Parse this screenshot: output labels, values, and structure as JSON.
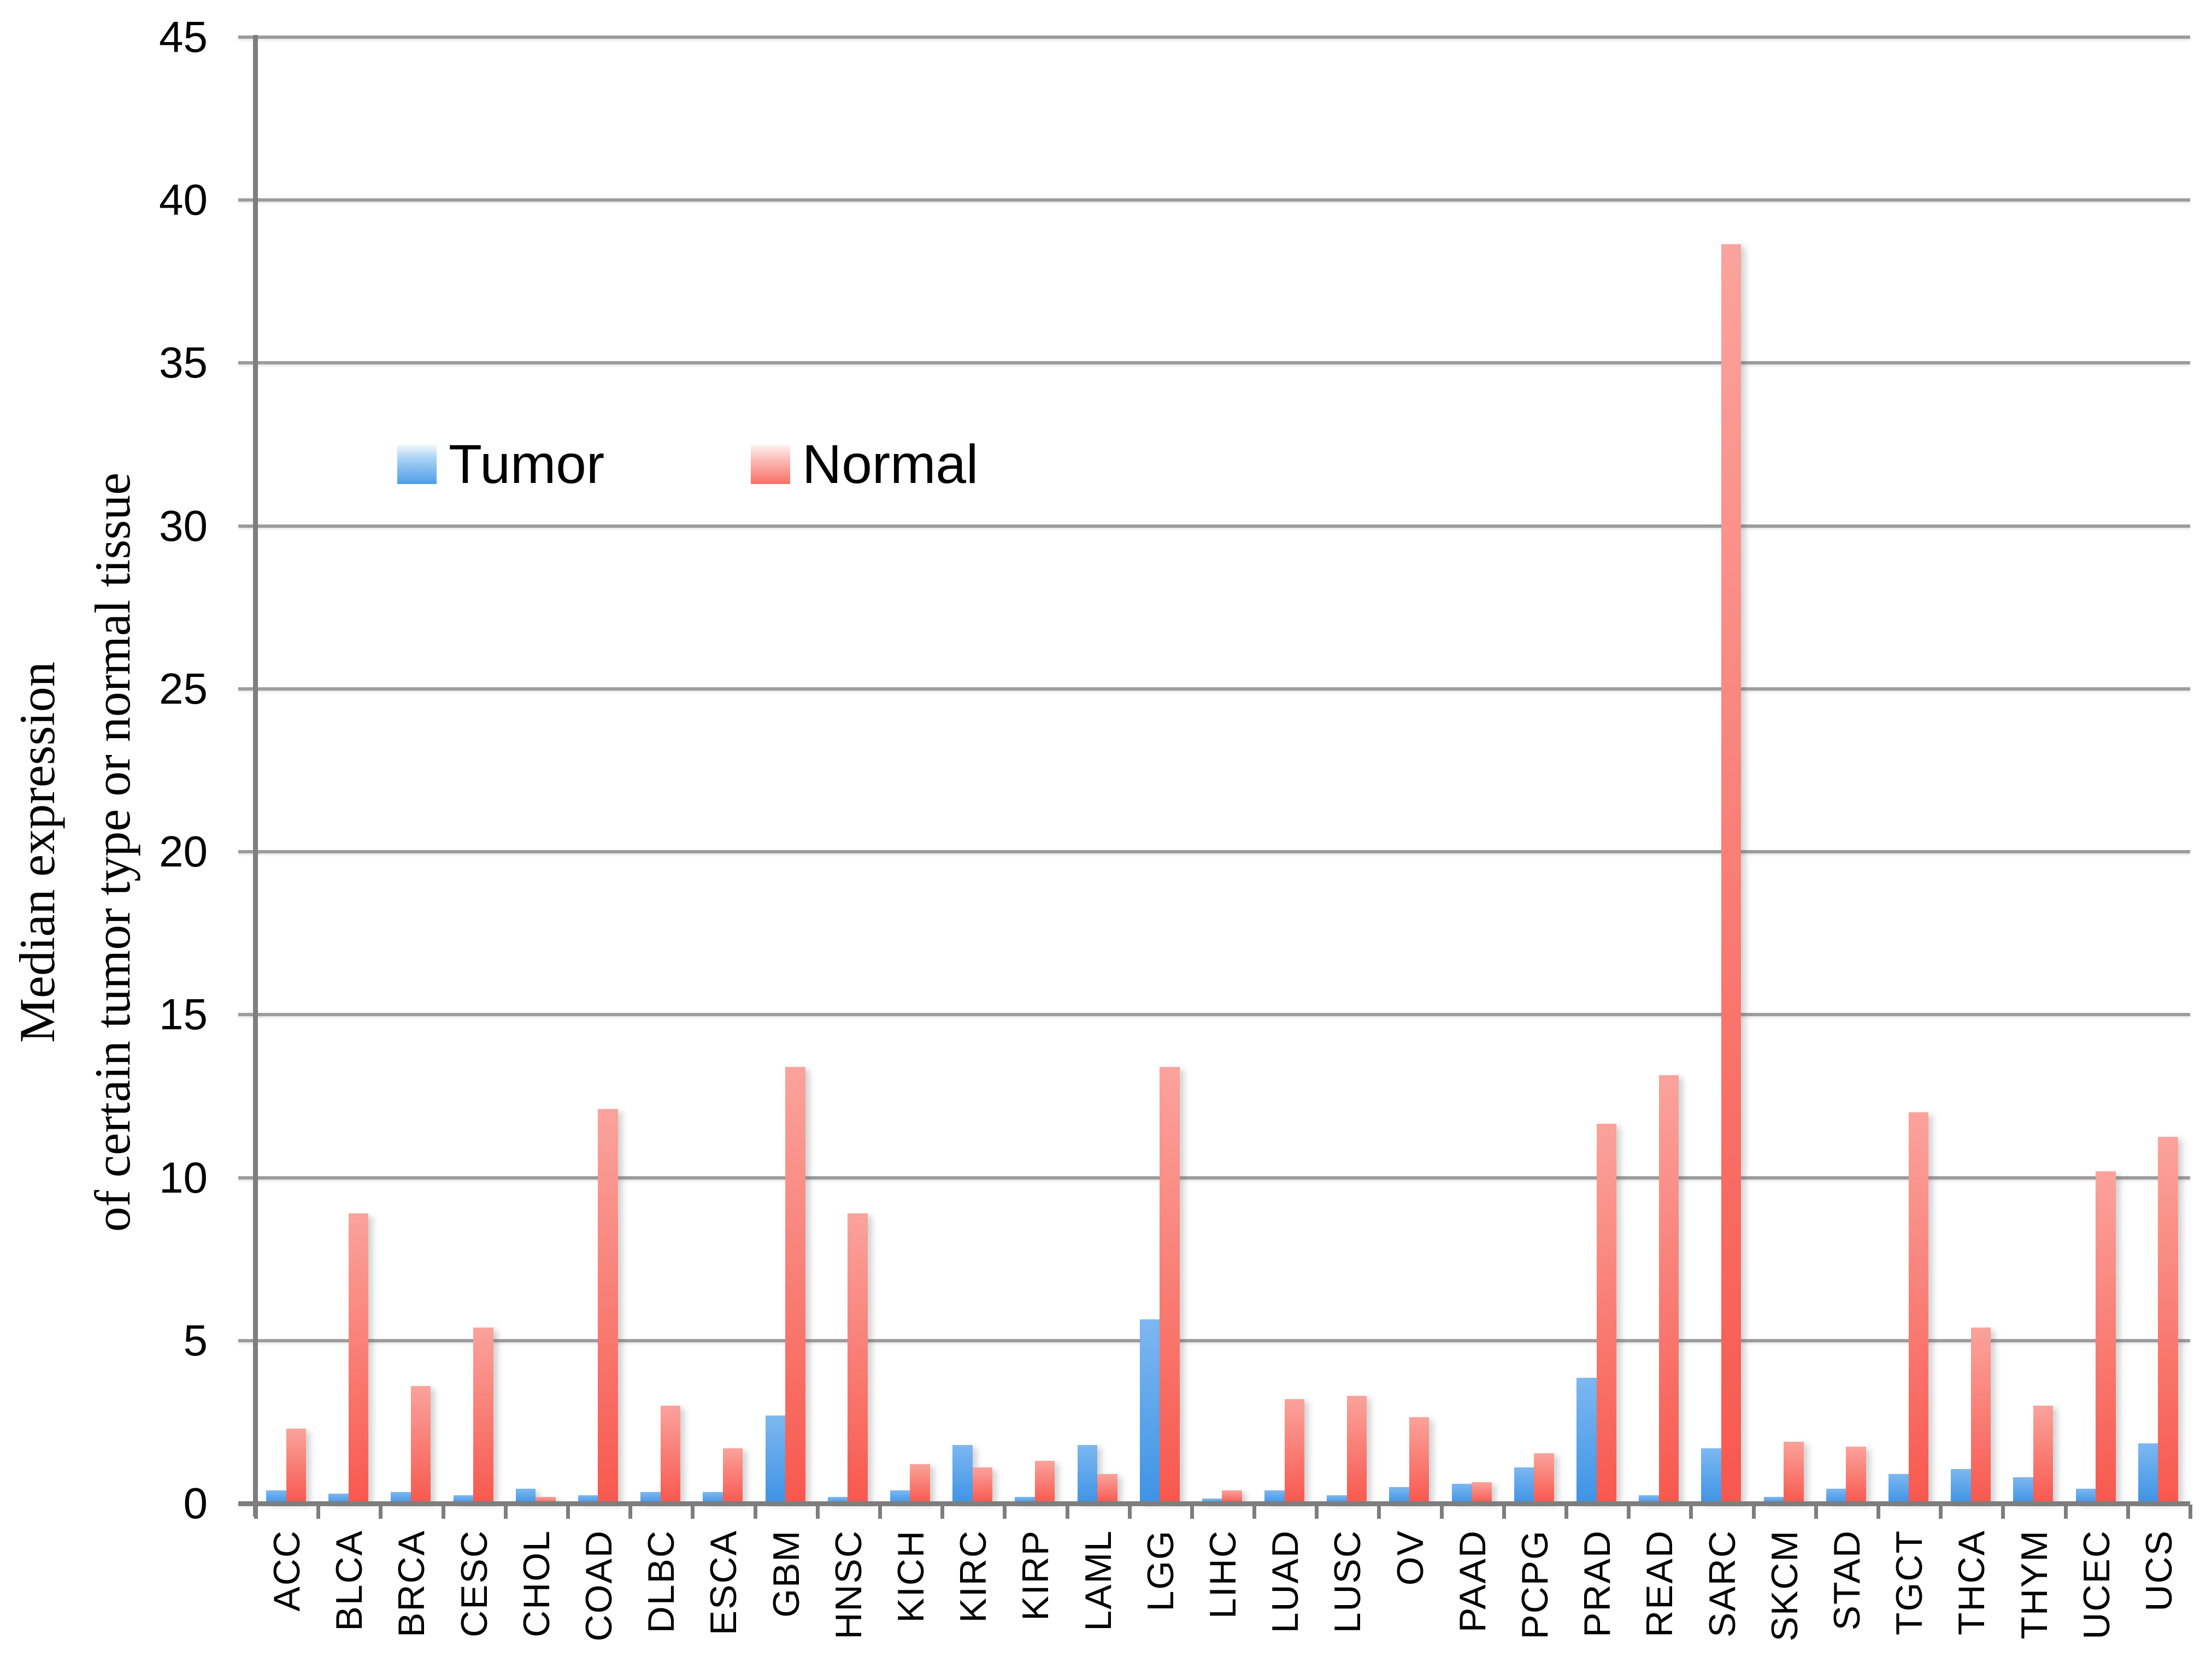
{
  "chart_data": {
    "type": "bar",
    "title": "",
    "ylabel_lines": [
      "Median expression",
      "of certain tumor type or normal tissue"
    ],
    "xlabel": "",
    "categories": [
      "ACC",
      "BLCA",
      "BRCA",
      "CESC",
      "CHOL",
      "COAD",
      "DLBC",
      "ESCA",
      "GBM",
      "HNSC",
      "KICH",
      "KIRC",
      "KIRP",
      "LAML",
      "LGG",
      "LIHC",
      "LUAD",
      "LUSC",
      "OV",
      "PAAD",
      "PCPG",
      "PRAD",
      "READ",
      "SARC",
      "SKCM",
      "STAD",
      "TGCT",
      "THCA",
      "THYM",
      "UCEC",
      "UCS"
    ],
    "series": [
      {
        "name": "Tumor",
        "color_top": "#7db8f1",
        "color_bottom": "#3e93e5",
        "values": [
          0.4,
          0.3,
          0.35,
          0.25,
          0.45,
          0.25,
          0.35,
          0.35,
          2.7,
          0.2,
          0.4,
          1.8,
          0.2,
          1.8,
          5.65,
          0.15,
          0.4,
          0.25,
          0.5,
          0.6,
          1.1,
          3.85,
          0.25,
          1.7,
          0.2,
          0.45,
          0.9,
          1.05,
          0.8,
          0.45,
          1.85
        ]
      },
      {
        "name": "Normal",
        "color_top": "#faa39c",
        "color_bottom": "#f8584e",
        "values": [
          2.3,
          8.9,
          3.6,
          5.4,
          0.2,
          12.1,
          3.0,
          1.7,
          13.4,
          8.9,
          1.2,
          1.1,
          1.3,
          0.9,
          13.4,
          0.4,
          3.2,
          3.3,
          2.65,
          0.65,
          1.55,
          11.65,
          13.15,
          38.65,
          1.9,
          1.75,
          12.0,
          5.4,
          3.0,
          10.2,
          11.25
        ]
      }
    ],
    "ylim": [
      0,
      45
    ],
    "ytick_step": 5,
    "yticks": [
      0,
      5,
      10,
      15,
      20,
      25,
      30,
      35,
      40,
      45
    ],
    "grid": true,
    "legend_position": "inside-top-left"
  },
  "legend": {
    "tumor_label": "Tumor",
    "normal_label": "Normal"
  },
  "colors": {
    "gridline": "#9c9c9c",
    "axis": "#7e7e7e",
    "text": "#000000",
    "background": "#ffffff"
  }
}
